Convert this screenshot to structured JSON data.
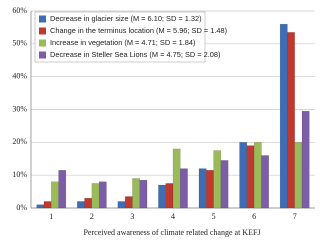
{
  "chart_data": {
    "type": "bar",
    "x_label": "Perceived awareness of climate related change at KEFJ",
    "categories": [
      "1",
      "2",
      "3",
      "4",
      "5",
      "6",
      "7"
    ],
    "series": [
      {
        "name": "Decrease in glacier size (M = 6.10; SD = 1.32)",
        "color": "#3e6db3",
        "values": [
          1,
          2,
          2,
          7,
          12,
          20,
          56
        ]
      },
      {
        "name": "Change in the terminus location (M = 5.96; SD = 1.48)",
        "color": "#c0392f",
        "values": [
          2,
          3,
          3.5,
          7.5,
          11.5,
          19,
          53.5
        ]
      },
      {
        "name": "Increase in vegetation (M = 4.71; SD = 1.84)",
        "color": "#9bbb59",
        "values": [
          8,
          7.5,
          9,
          18,
          17.5,
          20,
          20
        ]
      },
      {
        "name": "Decrease in Steller Sea Lions (M = 4.75; SD = 2.08)",
        "color": "#7b5ea7",
        "values": [
          11.5,
          8,
          8.5,
          12,
          14.5,
          16,
          29.5
        ]
      }
    ],
    "ylim": [
      0,
      60
    ],
    "yticks": [
      {
        "value": 0,
        "label": "0%"
      },
      {
        "value": 10,
        "label": "10%"
      },
      {
        "value": 20,
        "label": "20%"
      },
      {
        "value": 30,
        "label": "30%"
      },
      {
        "value": 40,
        "label": "40%"
      },
      {
        "value": 50,
        "label": "50%"
      },
      {
        "value": 60,
        "label": "60%"
      }
    ],
    "grid": true
  }
}
